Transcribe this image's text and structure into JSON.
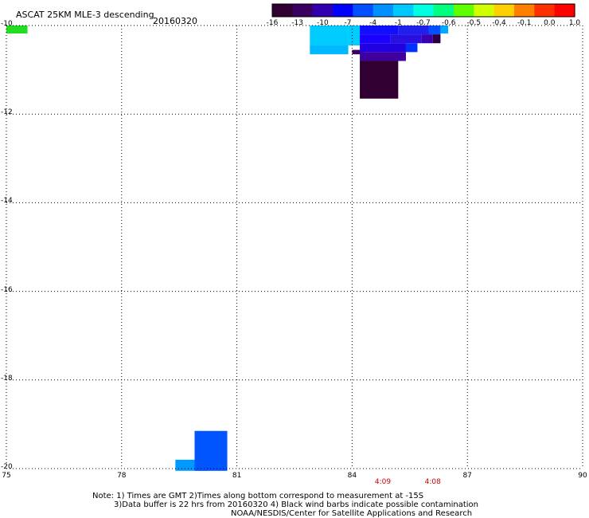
{
  "header": {
    "title": "ASCAT 25KM MLE-3 descending",
    "date": "20160320"
  },
  "colorbar": {
    "labels": [
      "-16",
      "-13",
      "-10",
      "-7",
      "-4",
      "-1",
      "-0.7",
      "-0.6",
      "-0.5",
      "-0.4",
      "-0.1",
      "0.0",
      "1.0"
    ],
    "colors": [
      "#300030",
      "#3a0060",
      "#3000b0",
      "#0000ff",
      "#0050ff",
      "#0090ff",
      "#00c8ff",
      "#00ffe0",
      "#00ff80",
      "#60ff00",
      "#d0ff00",
      "#ffd000",
      "#ff8000",
      "#ff3000",
      "#ff0000"
    ]
  },
  "map": {
    "lon_range": [
      75,
      90
    ],
    "lat_range": [
      -10,
      -20
    ],
    "x_ticks": [
      "75",
      "78",
      "81",
      "84",
      "87",
      "90"
    ],
    "y_ticks": [
      "-10",
      "-12",
      "-14",
      "-16",
      "-18",
      "-20"
    ],
    "grid": "dotted",
    "cells": [
      {
        "lon0": 75.0,
        "lon1": 75.55,
        "lat0": -10.0,
        "lat1": -10.18,
        "color": "#22dd22"
      },
      {
        "lon0": 82.9,
        "lon1": 83.9,
        "lat0": -10.0,
        "lat1": -10.45,
        "color": "#00ccff"
      },
      {
        "lon0": 82.9,
        "lon1": 83.9,
        "lat0": -10.45,
        "lat1": -10.65,
        "color": "#00b8ff"
      },
      {
        "lon0": 83.9,
        "lon1": 84.2,
        "lat0": -10.0,
        "lat1": -10.45,
        "color": "#00ccff"
      },
      {
        "lon0": 84.2,
        "lon1": 85.2,
        "lat0": -10.0,
        "lat1": -10.2,
        "color": "#1010ff"
      },
      {
        "lon0": 85.2,
        "lon1": 86.0,
        "lat0": -10.0,
        "lat1": -10.2,
        "color": "#2020ee"
      },
      {
        "lon0": 86.0,
        "lon1": 86.3,
        "lat0": -10.0,
        "lat1": -10.2,
        "color": "#0050ff"
      },
      {
        "lon0": 86.3,
        "lon1": 86.5,
        "lat0": -10.0,
        "lat1": -10.18,
        "color": "#00aaff"
      },
      {
        "lon0": 84.2,
        "lon1": 85.0,
        "lat0": -10.2,
        "lat1": -10.4,
        "color": "#1a00ff"
      },
      {
        "lon0": 85.0,
        "lon1": 85.8,
        "lat0": -10.2,
        "lat1": -10.4,
        "color": "#2a10e0"
      },
      {
        "lon0": 85.8,
        "lon1": 86.1,
        "lat0": -10.2,
        "lat1": -10.4,
        "color": "#3a00b0"
      },
      {
        "lon0": 86.1,
        "lon1": 86.3,
        "lat0": -10.2,
        "lat1": -10.4,
        "color": "#2a0040"
      },
      {
        "lon0": 84.0,
        "lon1": 84.3,
        "lat0": -10.55,
        "lat1": -10.65,
        "color": "#3a0060"
      },
      {
        "lon0": 84.2,
        "lon1": 85.4,
        "lat0": -10.4,
        "lat1": -10.6,
        "color": "#2000e0"
      },
      {
        "lon0": 85.4,
        "lon1": 85.7,
        "lat0": -10.4,
        "lat1": -10.6,
        "color": "#0030ff"
      },
      {
        "lon0": 84.2,
        "lon1": 85.4,
        "lat0": -10.6,
        "lat1": -10.8,
        "color": "#4000a0"
      },
      {
        "lon0": 84.2,
        "lon1": 85.2,
        "lat0": -10.8,
        "lat1": -11.65,
        "color": "#300030"
      },
      {
        "lon0": 79.4,
        "lon1": 80.25,
        "lat0": -19.8,
        "lat1": -20.05,
        "color": "#0099ff"
      },
      {
        "lon0": 79.9,
        "lon1": 80.75,
        "lat0": -19.15,
        "lat1": -20.05,
        "color": "#0055ff"
      }
    ]
  },
  "time_labels": [
    {
      "text": "4:09",
      "lon": 84.8
    },
    {
      "text": "4:08",
      "lon": 86.1
    }
  ],
  "notes": [
    "Note: 1) Times are GMT 2)Times along bottom correspond to measurement at -15S",
    "3)Data buffer is 22 hrs from 20160320 4) Black wind barbs indicate possible contamination",
    "NOAA/NESDIS/Center for Satellite Applications and Research"
  ]
}
